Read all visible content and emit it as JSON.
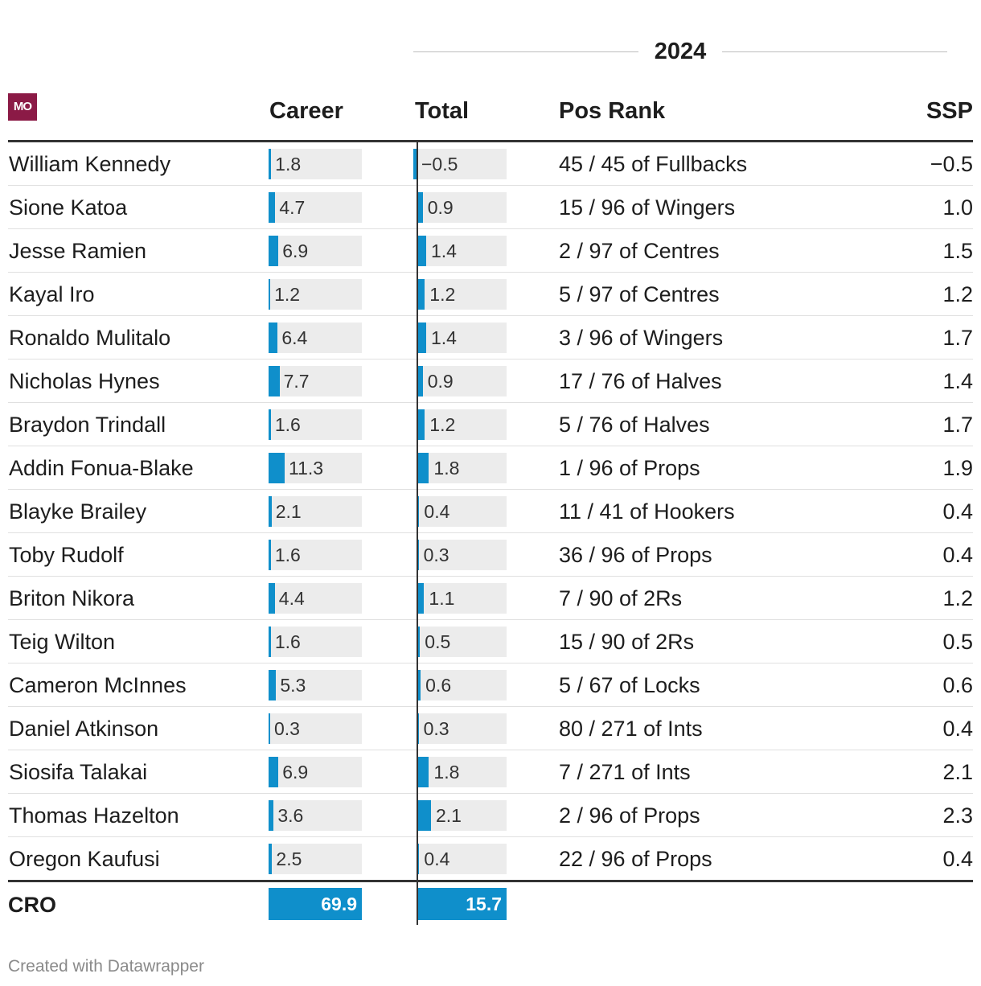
{
  "group_header": "2024",
  "logo_text": "MO",
  "columns": {
    "career": "Career",
    "total": "Total",
    "pos_rank": "Pos Rank",
    "ssp": "SSP"
  },
  "footer": {
    "name": "CRO",
    "career": "69.9",
    "total": "15.7"
  },
  "credit": "Created with Datawrapper",
  "colors": {
    "bar": "#0f8fcb",
    "track": "#ececec",
    "logo": "#8b1a46"
  },
  "chart_data": {
    "type": "table",
    "career_max": 11.3,
    "total_max": 2.1,
    "rows": [
      {
        "name": "William Kennedy",
        "career": 1.8,
        "career_label": "1.8",
        "total": -0.5,
        "total_label": "−0.5",
        "pos_rank": "45 / 45 of Fullbacks",
        "ssp": "−0.5"
      },
      {
        "name": "Sione Katoa",
        "career": 4.7,
        "career_label": "4.7",
        "total": 0.9,
        "total_label": "0.9",
        "pos_rank": "15 / 96 of Wingers",
        "ssp": "1.0"
      },
      {
        "name": "Jesse Ramien",
        "career": 6.9,
        "career_label": "6.9",
        "total": 1.4,
        "total_label": "1.4",
        "pos_rank": "2 / 97 of Centres",
        "ssp": "1.5"
      },
      {
        "name": "Kayal Iro",
        "career": 1.2,
        "career_label": "1.2",
        "total": 1.2,
        "total_label": "1.2",
        "pos_rank": "5 / 97 of Centres",
        "ssp": "1.2"
      },
      {
        "name": "Ronaldo Mulitalo",
        "career": 6.4,
        "career_label": "6.4",
        "total": 1.4,
        "total_label": "1.4",
        "pos_rank": "3 / 96 of Wingers",
        "ssp": "1.7"
      },
      {
        "name": "Nicholas Hynes",
        "career": 7.7,
        "career_label": "7.7",
        "total": 0.9,
        "total_label": "0.9",
        "pos_rank": "17 / 76 of Halves",
        "ssp": "1.4"
      },
      {
        "name": "Braydon Trindall",
        "career": 1.6,
        "career_label": "1.6",
        "total": 1.2,
        "total_label": "1.2",
        "pos_rank": "5 / 76 of Halves",
        "ssp": "1.7"
      },
      {
        "name": "Addin Fonua-Blake",
        "career": 11.3,
        "career_label": "11.3",
        "total": 1.8,
        "total_label": "1.8",
        "pos_rank": "1 / 96 of Props",
        "ssp": "1.9"
      },
      {
        "name": "Blayke Brailey",
        "career": 2.1,
        "career_label": "2.1",
        "total": 0.4,
        "total_label": "0.4",
        "pos_rank": "11 / 41 of Hookers",
        "ssp": "0.4"
      },
      {
        "name": "Toby Rudolf",
        "career": 1.6,
        "career_label": "1.6",
        "total": 0.3,
        "total_label": "0.3",
        "pos_rank": "36 / 96 of Props",
        "ssp": "0.4"
      },
      {
        "name": "Briton Nikora",
        "career": 4.4,
        "career_label": "4.4",
        "total": 1.1,
        "total_label": "1.1",
        "pos_rank": "7 / 90 of 2Rs",
        "ssp": "1.2"
      },
      {
        "name": "Teig Wilton",
        "career": 1.6,
        "career_label": "1.6",
        "total": 0.5,
        "total_label": "0.5",
        "pos_rank": "15 / 90 of 2Rs",
        "ssp": "0.5"
      },
      {
        "name": "Cameron McInnes",
        "career": 5.3,
        "career_label": "5.3",
        "total": 0.6,
        "total_label": "0.6",
        "pos_rank": "5 / 67 of Locks",
        "ssp": "0.6"
      },
      {
        "name": "Daniel Atkinson",
        "career": 0.3,
        "career_label": "0.3",
        "total": 0.3,
        "total_label": "0.3",
        "pos_rank": "80 / 271 of Ints",
        "ssp": "0.4"
      },
      {
        "name": "Siosifa Talakai",
        "career": 6.9,
        "career_label": "6.9",
        "total": 1.8,
        "total_label": "1.8",
        "pos_rank": "7 / 271 of Ints",
        "ssp": "2.1"
      },
      {
        "name": "Thomas Hazelton",
        "career": 3.6,
        "career_label": "3.6",
        "total": 2.1,
        "total_label": "2.1",
        "pos_rank": "2 / 96 of Props",
        "ssp": "2.3"
      },
      {
        "name": "Oregon Kaufusi",
        "career": 2.5,
        "career_label": "2.5",
        "total": 0.4,
        "total_label": "0.4",
        "pos_rank": "22 / 96 of Props",
        "ssp": "0.4"
      }
    ]
  }
}
